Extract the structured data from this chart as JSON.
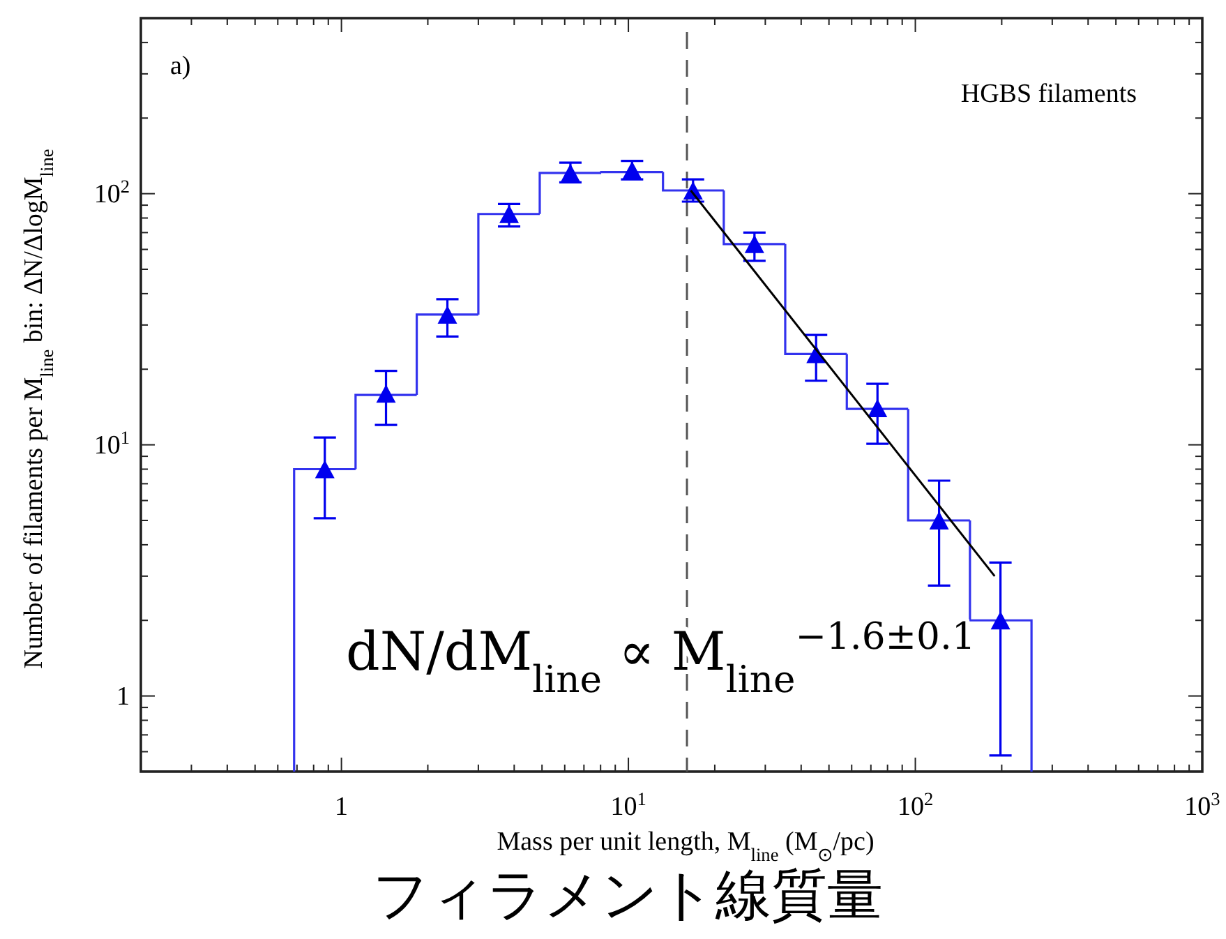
{
  "chart_data": {
    "type": "histogram",
    "log": "xy",
    "bins": [
      0.684,
      1.12,
      1.83,
      3.0,
      4.91,
      8.04,
      13.2,
      21.5,
      35.2,
      57.7,
      94.4,
      155,
      254
    ],
    "values": [
      8,
      15.8,
      33,
      83,
      121,
      122,
      103,
      63,
      23,
      13.9,
      5,
      2
    ],
    "color": "#3333ee",
    "series": [
      {
        "type": "scatter",
        "marker": "triangle",
        "color": "#0000ee",
        "x": [
          0.875,
          1.43,
          2.34,
          3.84,
          6.28,
          10.3,
          16.8,
          27.5,
          45.1,
          73.8,
          121,
          198
        ],
        "values": [
          8,
          16,
          33,
          83,
          121,
          124,
          103,
          63,
          23,
          14,
          5,
          2
        ],
        "errors": [
          [
            5.1,
            10.7
          ],
          [
            12,
            19.7
          ],
          [
            27,
            38
          ],
          [
            74,
            91
          ],
          [
            111,
            133
          ],
          [
            114,
            135
          ],
          [
            93,
            114
          ],
          [
            54,
            70
          ],
          [
            18,
            27.4
          ],
          [
            10.1,
            17.5
          ],
          [
            2.75,
            7.2
          ],
          [
            0.58,
            3.4
          ]
        ]
      },
      {
        "type": "line",
        "color": "#000000",
        "x": [
          16.5,
          189
        ],
        "values": [
          103,
          3
        ]
      }
    ],
    "xlim": [
      0.2,
      1000
    ],
    "ylim": [
      0.5,
      500
    ],
    "xticks": [
      1,
      {
        "value": 10,
        "label": "10$^{1}$"
      },
      {
        "value": 100,
        "label": "10$^{2}$"
      },
      {
        "value": 1000,
        "label": "10$^{3}$"
      }
    ],
    "yticks": [
      1,
      {
        "value": 10,
        "label": "10$^{1}$"
      },
      {
        "value": 100,
        "label": "10$^{2}$"
      }
    ],
    "xlabel": "Mass per unit length, M$_{line}$ (M$_{⊙}$/pc)",
    "ylabel": "Number of filaments per M$_{line}$ bin: ΔN/ΔlogM$_{line}$",
    "ref_lines": [
      {
        "axis": "x",
        "value": 16,
        "color": "#555555",
        "line_style": "dashed"
      }
    ],
    "annotations": [
      "a)",
      "HGBS filaments",
      "dN/dM$_{line}$ ∝ M$_{line}$$^{−1.6±0.1}$",
      "フィラメント線質量"
    ]
  }
}
